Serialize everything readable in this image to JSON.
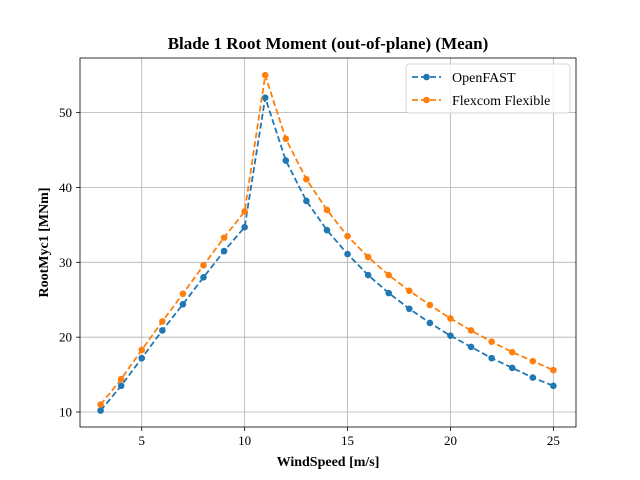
{
  "chart_data": {
    "type": "line",
    "title": "Blade 1 Root Moment (out-of-plane) (Mean)",
    "xlabel": "WindSpeed [m/s]",
    "ylabel": "RootMyc1 [MNm]",
    "xlim": [
      2.0,
      26.1
    ],
    "ylim": [
      8.0,
      57.3
    ],
    "xticks": [
      5,
      10,
      15,
      20,
      25
    ],
    "yticks": [
      10,
      20,
      30,
      40,
      50
    ],
    "grid": true,
    "legend_position": "top-right",
    "x": [
      3,
      4,
      5,
      6,
      7,
      8,
      9,
      10,
      11,
      12,
      13,
      14,
      15,
      16,
      17,
      18,
      19,
      20,
      21,
      22,
      23,
      24,
      25
    ],
    "series": [
      {
        "name": "OpenFAST",
        "color": "#1f77b4",
        "values": [
          10.2,
          13.5,
          17.2,
          20.9,
          24.4,
          28.0,
          31.5,
          34.7,
          52.0,
          43.6,
          38.2,
          34.3,
          31.1,
          28.3,
          25.9,
          23.8,
          21.9,
          20.2,
          18.7,
          17.2,
          15.9,
          14.6,
          13.5
        ]
      },
      {
        "name": "Flexcom Flexible",
        "color": "#ff7f0e",
        "values": [
          11.0,
          14.4,
          18.3,
          22.1,
          25.8,
          29.6,
          33.3,
          36.8,
          55.0,
          46.5,
          41.1,
          37.0,
          33.5,
          30.7,
          28.3,
          26.2,
          24.3,
          22.5,
          20.9,
          19.4,
          18.0,
          16.8,
          15.6
        ]
      }
    ]
  }
}
